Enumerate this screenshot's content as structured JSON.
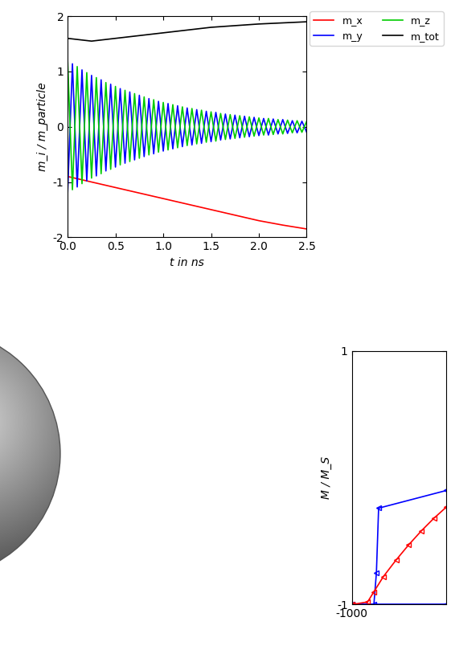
{
  "chart_data": [
    {
      "type": "line",
      "x_label": "t in ns",
      "y_label": "m_i / m_particle",
      "xlim": [
        0.0,
        2.5
      ],
      "xticks": [
        0.0,
        0.5,
        1.0,
        1.5,
        2.0,
        2.5
      ],
      "ylim": [
        -2,
        2
      ],
      "yticks": [
        -2,
        -1,
        0,
        1,
        2
      ],
      "legend": "upper right",
      "series": [
        {
          "name": "m_x",
          "color": "#ff0000",
          "x": [
            0.0,
            0.25,
            0.5,
            0.75,
            1.0,
            1.25,
            1.5,
            1.75,
            2.0,
            2.25,
            2.5
          ],
          "values": [
            -0.9,
            -1.0,
            -1.1,
            -1.2,
            -1.3,
            -1.4,
            -1.5,
            -1.6,
            -1.7,
            -1.78,
            -1.85
          ]
        },
        {
          "name": "m_y",
          "color": "#0000ff",
          "x": [
            0.0,
            0.05,
            0.1,
            0.15,
            0.2,
            0.25,
            0.3,
            0.35,
            0.4,
            0.45,
            0.5,
            0.55,
            0.6,
            0.65,
            0.7,
            0.75,
            0.8,
            0.85,
            0.9,
            0.95,
            1.0,
            1.05,
            1.1,
            1.15,
            1.2,
            1.25,
            1.3,
            1.35,
            1.4,
            1.45,
            1.5,
            1.55,
            1.6,
            1.65,
            1.7,
            1.75,
            1.8,
            1.85,
            1.9,
            1.95,
            2.0,
            2.05,
            2.1,
            2.15,
            2.2,
            2.25,
            2.3,
            2.35,
            2.4,
            2.45,
            2.5
          ],
          "values": [
            -1.2,
            1.14,
            -1.09,
            1.03,
            -0.98,
            0.93,
            -0.89,
            0.85,
            -0.8,
            0.77,
            -0.73,
            0.69,
            -0.66,
            0.63,
            -0.6,
            0.57,
            -0.54,
            0.51,
            -0.49,
            0.46,
            -0.44,
            0.42,
            -0.4,
            0.38,
            -0.36,
            0.34,
            -0.33,
            0.31,
            -0.3,
            0.28,
            -0.27,
            0.26,
            -0.24,
            0.23,
            -0.22,
            0.21,
            -0.2,
            0.19,
            -0.18,
            0.17,
            -0.16,
            0.15,
            -0.15,
            0.14,
            -0.13,
            0.13,
            -0.12,
            0.11,
            -0.11,
            0.1,
            -0.1
          ]
        },
        {
          "name": "m_z",
          "color": "#00cc00",
          "x": [
            0.0,
            0.05,
            0.1,
            0.15,
            0.2,
            0.25,
            0.3,
            0.35,
            0.4,
            0.45,
            0.5,
            0.55,
            0.6,
            0.65,
            0.7,
            0.75,
            0.8,
            0.85,
            0.9,
            0.95,
            1.0,
            1.05,
            1.1,
            1.15,
            1.2,
            1.25,
            1.3,
            1.35,
            1.4,
            1.45,
            1.5,
            1.55,
            1.6,
            1.65,
            1.7,
            1.75,
            1.8,
            1.85,
            1.9,
            1.95,
            2.0,
            2.05,
            2.1,
            2.15,
            2.2,
            2.25,
            2.3,
            2.35,
            2.4,
            2.45,
            2.5
          ],
          "values": [
            1.2,
            -1.14,
            1.09,
            -1.03,
            0.98,
            -0.93,
            0.89,
            -0.85,
            0.8,
            -0.77,
            0.73,
            -0.69,
            0.66,
            -0.63,
            0.6,
            -0.57,
            0.54,
            -0.51,
            0.49,
            -0.46,
            0.44,
            -0.42,
            0.4,
            -0.38,
            0.36,
            -0.34,
            0.33,
            -0.31,
            0.3,
            -0.28,
            0.27,
            -0.26,
            0.24,
            -0.23,
            0.22,
            -0.21,
            0.2,
            -0.19,
            0.18,
            -0.17,
            0.16,
            -0.15,
            0.15,
            -0.14,
            0.13,
            -0.13,
            0.12,
            -0.11,
            0.11,
            -0.1,
            0.1
          ]
        },
        {
          "name": "m_tot",
          "color": "#000000",
          "x": [
            0.0,
            0.25,
            0.5,
            0.75,
            1.0,
            1.25,
            1.5,
            1.75,
            2.0,
            2.25,
            2.5
          ],
          "values": [
            1.6,
            1.55,
            1.6,
            1.65,
            1.7,
            1.75,
            1.8,
            1.83,
            1.86,
            1.88,
            1.9
          ]
        }
      ]
    },
    {
      "type": "line",
      "y_label": "M / M_S",
      "xlim": [
        -1000,
        -700
      ],
      "xticks": [
        -1000
      ],
      "ylim": [
        -1,
        1
      ],
      "yticks": [
        -1,
        1
      ],
      "series": [
        {
          "color": "#0000ff",
          "marker": "triangle",
          "x": [
            -1000,
            -930,
            -922,
            -915,
            -700
          ],
          "values": [
            -1,
            -1,
            -0.75,
            -0.24,
            -0.1
          ]
        },
        {
          "color": "#0000ff",
          "marker": "triangle",
          "x": [
            -1000,
            -700
          ],
          "values": [
            -1,
            -1
          ]
        },
        {
          "color": "#ff0000",
          "marker": "triangle",
          "x": [
            -1000,
            -950,
            -930,
            -900,
            -860,
            -820,
            -780,
            -740,
            -700
          ],
          "values": [
            -1,
            -0.98,
            -0.9,
            -0.78,
            -0.65,
            -0.53,
            -0.42,
            -0.32,
            -0.23
          ]
        }
      ]
    }
  ]
}
